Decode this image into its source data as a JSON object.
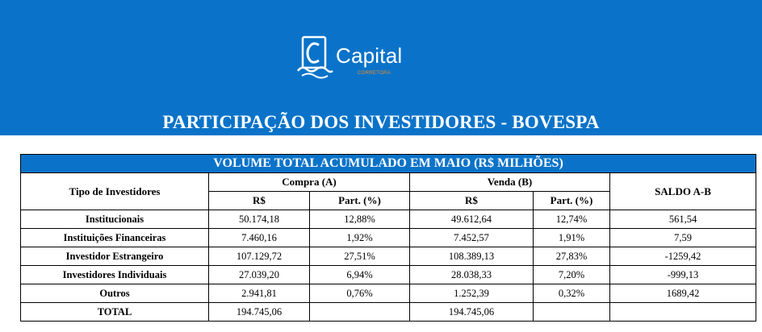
{
  "logo": {
    "name": "Capital",
    "subtitle": "CORRETORA"
  },
  "banner": {
    "title": "PARTICIPAÇÃO DOS INVESTIDORES - BOVESPA"
  },
  "table": {
    "title": "VOLUME TOTAL ACUMULADO EM MAIO (R$ MILHÕES)",
    "col_type": "Tipo de Investidores",
    "group_buy": "Compra (A)",
    "group_sell": "Venda (B)",
    "col_saldo": "SALDO A-B",
    "sub_rs": "R$",
    "sub_part": "Part. (%)",
    "rows": [
      {
        "label": "Institucionais",
        "buy_rs": "50.174,18",
        "buy_part": "12,88%",
        "sell_rs": "49.612,64",
        "sell_part": "12,74%",
        "saldo": "561,54"
      },
      {
        "label": "Instituições Financeiras",
        "buy_rs": "7.460,16",
        "buy_part": "1,92%",
        "sell_rs": "7.452,57",
        "sell_part": "1,91%",
        "saldo": "7,59"
      },
      {
        "label": "Investidor Estrangeiro",
        "buy_rs": "107.129,72",
        "buy_part": "27,51%",
        "sell_rs": "108.389,13",
        "sell_part": "27,83%",
        "saldo": "-1259,42"
      },
      {
        "label": "Investidores Individuais",
        "buy_rs": "27.039,20",
        "buy_part": "6,94%",
        "sell_rs": "28.038,33",
        "sell_part": "7,20%",
        "saldo": "-999,13"
      },
      {
        "label": "Outros",
        "buy_rs": "2.941,81",
        "buy_part": "0,76%",
        "sell_rs": "1.252,39",
        "sell_part": "0,32%",
        "saldo": "1689,42"
      }
    ],
    "total": {
      "label": "TOTAL",
      "buy_rs": "194.745,06",
      "sell_rs": "194.745,06"
    }
  },
  "colors": {
    "banner": "#0a73c9",
    "logo_accent": "#f08a2a"
  }
}
